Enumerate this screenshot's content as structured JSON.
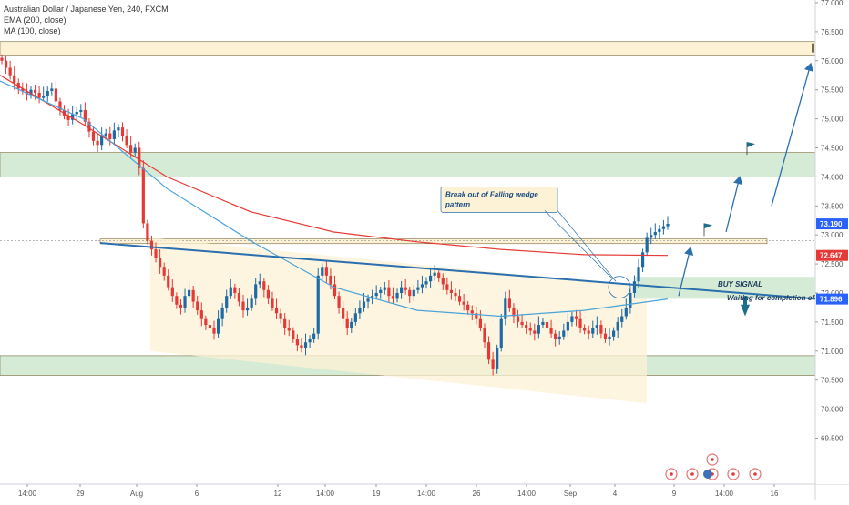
{
  "header": {
    "symbol": "Australian Dollar / Japanese Yen, 240, FXCM",
    "ema_label": "EMA (200, close)",
    "ma_label": "MA (100, close)"
  },
  "annotations": {
    "callout_line1": "Break out of Falling wedge",
    "callout_line2": "pattern",
    "buy_signal": "BUY SIGNAL",
    "waiting": "Waiting for completion of co"
  },
  "chart_data": {
    "type": "candlestick",
    "ylim": [
      69.1,
      77.0
    ],
    "y_ticks": [
      "77.000",
      "76.500",
      "76.000",
      "75.500",
      "75.000",
      "74.500",
      "74.000",
      "73.500",
      "73.000",
      "72.500",
      "72.000",
      "71.500",
      "71.000",
      "70.500",
      "70.000",
      "69.500"
    ],
    "x_ticks": [
      "14:00",
      "29",
      "Aug",
      "6",
      "12",
      "14:00",
      "19",
      "14:00",
      "26",
      "14:00",
      "Sep",
      "4",
      "9",
      "14:00",
      "16"
    ],
    "price_labels": [
      {
        "value": "73.190",
        "color": "#2962ff"
      },
      {
        "value": "72.647",
        "color": "#e53935"
      },
      {
        "value": "71.896",
        "color": "#2962ff"
      }
    ],
    "zones": [
      {
        "name": "resistance-76",
        "from": 76.1,
        "to": 76.33,
        "color": "#fdf1d6"
      },
      {
        "name": "resistance-74",
        "from": 74.0,
        "to": 74.42,
        "color": "#d6ebd6"
      },
      {
        "name": "breakout-line",
        "from": 72.85,
        "to": 72.93,
        "color": "#fdf1d6"
      },
      {
        "name": "support-70.8",
        "from": 70.58,
        "to": 70.92,
        "color": "#d6ebd6"
      }
    ],
    "close_series": [
      76.0,
      75.88,
      75.75,
      75.62,
      75.52,
      75.48,
      75.42,
      75.5,
      75.45,
      75.36,
      75.4,
      75.48,
      75.52,
      75.3,
      75.15,
      75.05,
      74.98,
      75.08,
      75.12,
      75.15,
      74.95,
      74.78,
      74.62,
      74.55,
      74.7,
      74.75,
      74.65,
      74.8,
      74.85,
      74.7,
      74.55,
      74.42,
      74.5,
      74.15,
      73.2,
      72.9,
      72.75,
      72.6,
      72.45,
      72.3,
      72.1,
      71.95,
      71.8,
      71.75,
      71.95,
      72.05,
      71.85,
      71.7,
      71.55,
      71.45,
      71.4,
      71.3,
      71.55,
      71.75,
      71.95,
      72.1,
      72.0,
      71.85,
      71.7,
      71.75,
      71.9,
      72.15,
      72.2,
      72.05,
      71.9,
      71.75,
      71.65,
      71.55,
      71.4,
      71.35,
      71.2,
      71.1,
      71.05,
      71.15,
      71.2,
      71.3,
      72.3,
      72.45,
      72.3,
      72.15,
      71.95,
      71.75,
      71.55,
      71.4,
      71.5,
      71.65,
      71.75,
      71.85,
      71.9,
      71.95,
      72.0,
      72.05,
      72.1,
      71.95,
      71.9,
      72.0,
      72.1,
      72.05,
      71.95,
      72.05,
      72.1,
      72.15,
      72.2,
      72.3,
      72.35,
      72.25,
      72.15,
      72.05,
      72.0,
      71.95,
      71.85,
      71.8,
      71.7,
      71.65,
      71.55,
      71.4,
      71.15,
      70.85,
      70.7,
      71.05,
      71.55,
      71.9,
      71.75,
      71.6,
      71.5,
      71.45,
      71.4,
      71.35,
      71.3,
      71.45,
      71.5,
      71.4,
      71.3,
      71.2,
      71.25,
      71.35,
      71.5,
      71.6,
      71.55,
      71.4,
      71.35,
      71.3,
      71.4,
      71.45,
      71.3,
      71.2,
      71.25,
      71.35,
      71.5,
      71.6,
      71.75,
      72.0,
      72.2,
      72.45,
      72.7,
      72.95,
      73.0,
      73.05,
      73.1,
      73.15,
      73.19
    ],
    "ema200": [
      75.75,
      74.9,
      74.0,
      73.4,
      73.05,
      72.88,
      72.75,
      72.66,
      72.647
    ],
    "ma100": [
      75.65,
      75.0,
      73.8,
      72.9,
      72.1,
      71.7,
      71.6,
      71.7,
      71.896
    ]
  }
}
